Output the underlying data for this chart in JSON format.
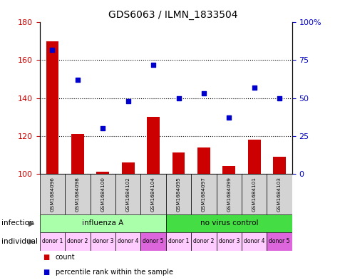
{
  "title": "GDS6063 / ILMN_1833504",
  "samples": [
    "GSM1684096",
    "GSM1684098",
    "GSM1684100",
    "GSM1684102",
    "GSM1684104",
    "GSM1684095",
    "GSM1684097",
    "GSM1684099",
    "GSM1684101",
    "GSM1684103"
  ],
  "counts": [
    170,
    121,
    101,
    106,
    130,
    111,
    114,
    104,
    118,
    109
  ],
  "percentiles": [
    82,
    62,
    30,
    48,
    72,
    50,
    53,
    37,
    57,
    50
  ],
  "ylim_left": [
    100,
    180
  ],
  "ylim_right": [
    0,
    100
  ],
  "yticks_left": [
    100,
    120,
    140,
    160,
    180
  ],
  "yticks_right": [
    0,
    25,
    50,
    75,
    100
  ],
  "ytick_labels_right": [
    "0",
    "25",
    "50",
    "75",
    "100%"
  ],
  "infection_groups": [
    {
      "label": "influenza A",
      "start": 0,
      "end": 5,
      "color": "#aaffaa"
    },
    {
      "label": "no virus control",
      "start": 5,
      "end": 10,
      "color": "#44dd44"
    }
  ],
  "individual_labels": [
    "donor 1",
    "donor 2",
    "donor 3",
    "donor 4",
    "donor 5",
    "donor 1",
    "donor 2",
    "donor 3",
    "donor 4",
    "donor 5"
  ],
  "individual_colors": [
    "#ffccff",
    "#ffccff",
    "#ffccff",
    "#ffccff",
    "#dd66dd",
    "#ffccff",
    "#ffccff",
    "#ffccff",
    "#ffccff",
    "#dd66dd"
  ],
  "bar_color": "#cc0000",
  "scatter_color": "#0000cc",
  "grid_color": "#000000",
  "tick_color_left": "#cc0000",
  "tick_color_right": "#0000cc",
  "bar_width": 0.5,
  "tick_fontsize": 8,
  "title_fontsize": 10
}
